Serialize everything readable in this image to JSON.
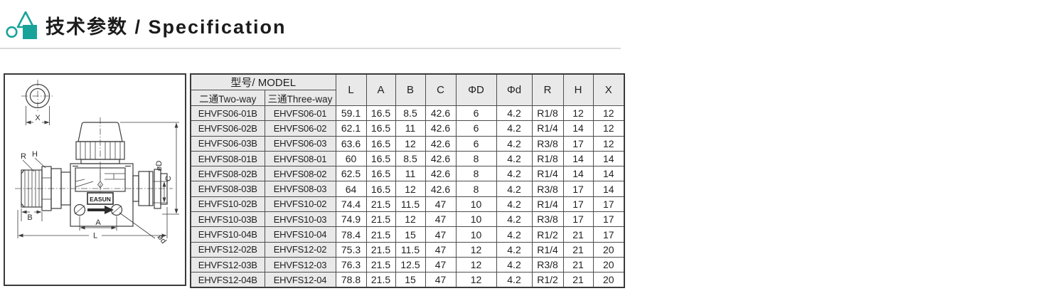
{
  "header": {
    "title": "技术参数 / Specification",
    "accent_color": "#18a39a"
  },
  "drawing": {
    "brand_label": "EASUN",
    "dim_labels": {
      "x": "X",
      "r": "R",
      "h": "H",
      "b": "B",
      "a": "A",
      "l": "L",
      "od_big": "øD",
      "c": "C",
      "od_small": "ød"
    }
  },
  "table": {
    "header": {
      "model_group": "型号/ MODEL",
      "two_way": "二通Two-way",
      "three_way": "三通Three-way",
      "dims": [
        "L",
        "A",
        "B",
        "C",
        "ΦD",
        "Φd",
        "R",
        "H",
        "X"
      ]
    },
    "rows": [
      [
        "EHVFS06-01B",
        "EHVFS06-01",
        "59.1",
        "16.5",
        "8.5",
        "42.6",
        "6",
        "4.2",
        "R1/8",
        "12",
        "12"
      ],
      [
        "EHVFS06-02B",
        "EHVFS06-02",
        "62.1",
        "16.5",
        "11",
        "42.6",
        "6",
        "4.2",
        "R1/4",
        "14",
        "12"
      ],
      [
        "EHVFS06-03B",
        "EHVFS06-03",
        "63.6",
        "16.5",
        "12",
        "42.6",
        "6",
        "4.2",
        "R3/8",
        "17",
        "12"
      ],
      [
        "EHVFS08-01B",
        "EHVFS08-01",
        "60",
        "16.5",
        "8.5",
        "42.6",
        "8",
        "4.2",
        "R1/8",
        "14",
        "14"
      ],
      [
        "EHVFS08-02B",
        "EHVFS08-02",
        "62.5",
        "16.5",
        "11",
        "42.6",
        "8",
        "4.2",
        "R1/4",
        "14",
        "14"
      ],
      [
        "EHVFS08-03B",
        "EHVFS08-03",
        "64",
        "16.5",
        "12",
        "42.6",
        "8",
        "4.2",
        "R3/8",
        "17",
        "14"
      ],
      [
        "EHVFS10-02B",
        "EHVFS10-02",
        "74.4",
        "21.5",
        "11.5",
        "47",
        "10",
        "4.2",
        "R1/4",
        "17",
        "17"
      ],
      [
        "EHVFS10-03B",
        "EHVFS10-03",
        "74.9",
        "21.5",
        "12",
        "47",
        "10",
        "4.2",
        "R3/8",
        "17",
        "17"
      ],
      [
        "EHVFS10-04B",
        "EHVFS10-04",
        "78.4",
        "21.5",
        "15",
        "47",
        "10",
        "4.2",
        "R1/2",
        "21",
        "17"
      ],
      [
        "EHVFS12-02B",
        "EHVFS12-02",
        "75.3",
        "21.5",
        "11.5",
        "47",
        "12",
        "4.2",
        "R1/4",
        "21",
        "20"
      ],
      [
        "EHVFS12-03B",
        "EHVFS12-03",
        "76.3",
        "21.5",
        "12.5",
        "47",
        "12",
        "4.2",
        "R3/8",
        "21",
        "20"
      ],
      [
        "EHVFS12-04B",
        "EHVFS12-04",
        "78.8",
        "21.5",
        "15",
        "47",
        "12",
        "4.2",
        "R1/2",
        "21",
        "20"
      ]
    ]
  }
}
